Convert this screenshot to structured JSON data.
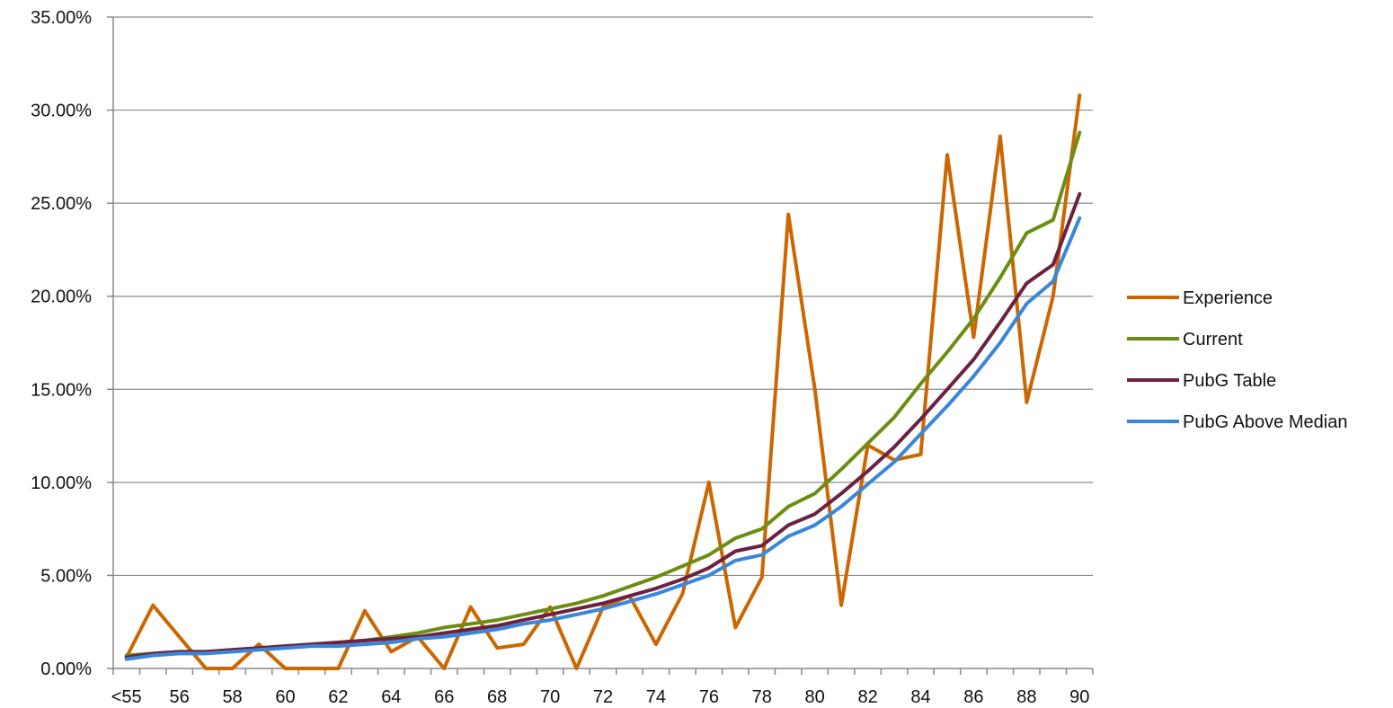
{
  "chart_data": {
    "type": "line",
    "categories": [
      "<55",
      "55",
      "56",
      "57",
      "58",
      "59",
      "60",
      "61",
      "62",
      "63",
      "64",
      "65",
      "66",
      "67",
      "68",
      "69",
      "70",
      "71",
      "72",
      "73",
      "74",
      "75",
      "76",
      "77",
      "78",
      "79",
      "80",
      "81",
      "82",
      "83",
      "84",
      "85",
      "86",
      "87",
      "88",
      "89",
      "90"
    ],
    "x_tick_labels": [
      "<55",
      "56",
      "58",
      "60",
      "62",
      "64",
      "66",
      "68",
      "70",
      "72",
      "74",
      "76",
      "78",
      "80",
      "82",
      "84",
      "86",
      "88",
      "90"
    ],
    "y_ticks": [
      "0.00%",
      "5.00%",
      "10.00%",
      "15.00%",
      "20.00%",
      "25.00%",
      "30.00%",
      "35.00%"
    ],
    "ylim": [
      0,
      0.35
    ],
    "grid": true,
    "legend_position": "right",
    "series": [
      {
        "name": "Experience",
        "color": "#CC6600",
        "values": [
          0.006,
          0.034,
          0.017,
          0.0,
          0.0,
          0.013,
          0.0,
          0.0,
          0.0,
          0.031,
          0.009,
          0.017,
          0.0,
          0.033,
          0.011,
          0.013,
          0.033,
          0.0,
          0.033,
          0.039,
          0.013,
          0.04,
          0.1,
          0.022,
          0.049,
          0.244,
          0.15,
          0.034,
          0.12,
          0.112,
          0.115,
          0.276,
          0.178,
          0.286,
          0.143,
          0.2,
          0.308
        ]
      },
      {
        "name": "Current",
        "color": "#6B8E12",
        "values": [
          0.007,
          0.008,
          0.009,
          0.009,
          0.01,
          0.011,
          0.012,
          0.013,
          0.014,
          0.015,
          0.017,
          0.019,
          0.022,
          0.024,
          0.026,
          0.029,
          0.032,
          0.035,
          0.039,
          0.044,
          0.049,
          0.055,
          0.061,
          0.07,
          0.075,
          0.087,
          0.094,
          0.107,
          0.121,
          0.135,
          0.153,
          0.17,
          0.188,
          0.21,
          0.234,
          0.241,
          0.288
        ]
      },
      {
        "name": "PubG Table",
        "color": "#6B2142",
        "values": [
          0.006,
          0.008,
          0.009,
          0.009,
          0.01,
          0.011,
          0.012,
          0.013,
          0.014,
          0.015,
          0.016,
          0.017,
          0.019,
          0.021,
          0.023,
          0.026,
          0.029,
          0.032,
          0.035,
          0.039,
          0.043,
          0.048,
          0.054,
          0.063,
          0.066,
          0.077,
          0.083,
          0.094,
          0.106,
          0.119,
          0.134,
          0.15,
          0.166,
          0.186,
          0.207,
          0.217,
          0.255
        ]
      },
      {
        "name": "PubG Above Median",
        "color": "#3A86D9",
        "values": [
          0.005,
          0.007,
          0.008,
          0.008,
          0.009,
          0.01,
          0.011,
          0.012,
          0.012,
          0.013,
          0.014,
          0.016,
          0.017,
          0.019,
          0.021,
          0.024,
          0.026,
          0.029,
          0.032,
          0.036,
          0.04,
          0.045,
          0.05,
          0.058,
          0.061,
          0.071,
          0.077,
          0.087,
          0.099,
          0.111,
          0.126,
          0.141,
          0.157,
          0.175,
          0.196,
          0.208,
          0.242
        ]
      }
    ]
  }
}
